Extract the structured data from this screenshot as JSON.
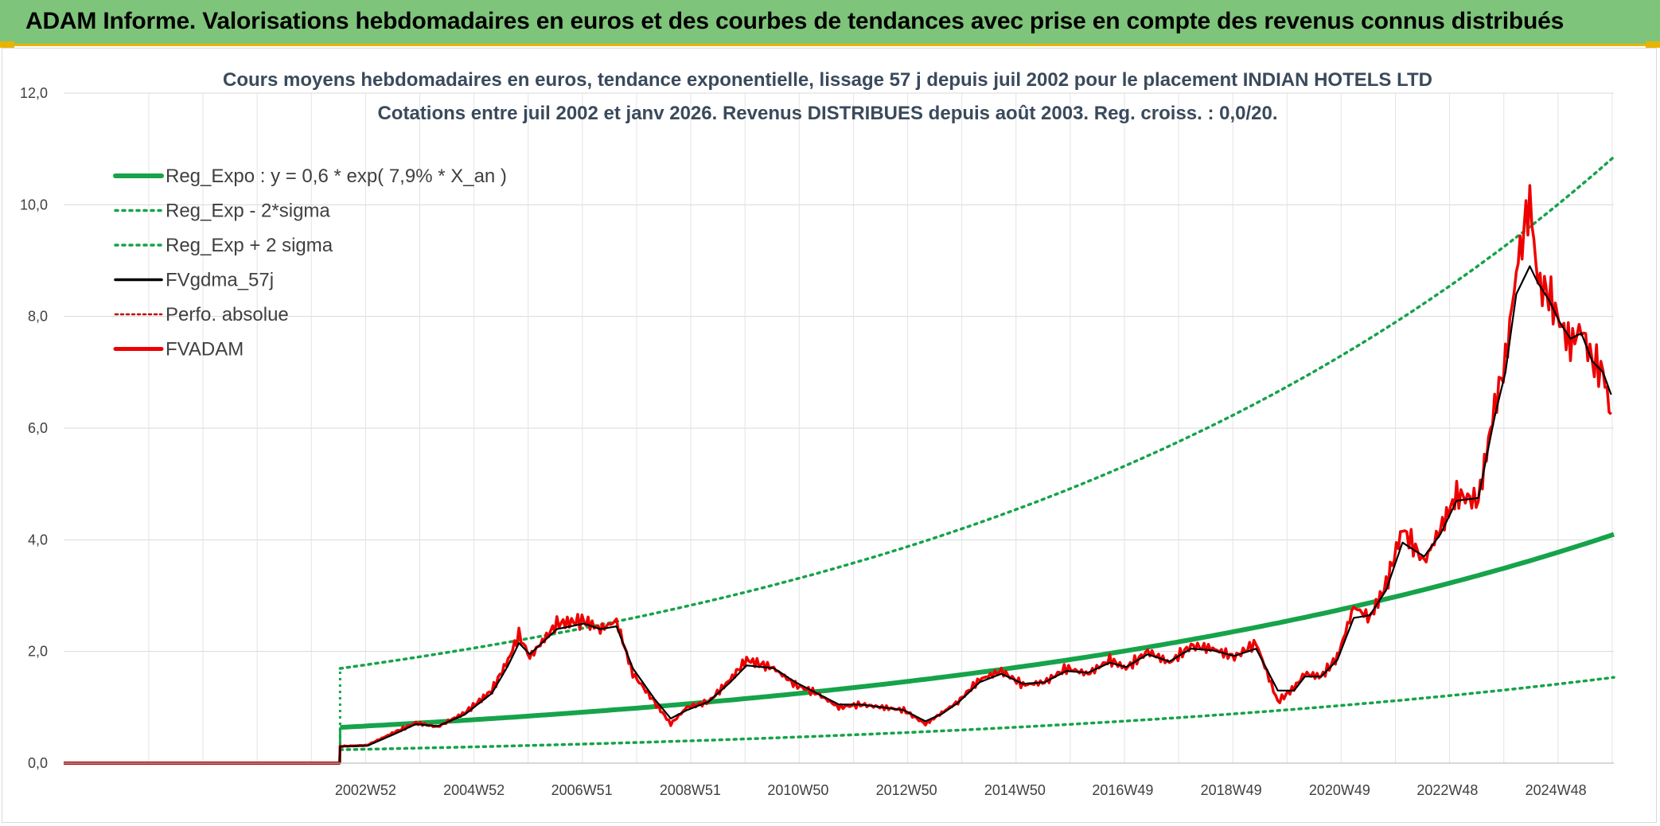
{
  "banner": {
    "title": "ADAM Informe. Valorisations hebdomadaires en euros et des courbes de tendances avec prise en compte des revenus connus distribués"
  },
  "colors": {
    "banner_bg": "#7ec47a",
    "regression": "#16a34a",
    "sigma": "#16a34a",
    "smoothed": "#000000",
    "perfo": "#c00000",
    "fvadam": "#ee0000"
  },
  "chart_data": {
    "type": "line",
    "title": [
      "Cours moyens hebdomadaires en euros, tendance exponentielle, lissage 57 j depuis juil 2002 pour le placement INDIAN HOTELS LTD",
      "Cotations entre juil 2002 et janv 2026. Revenus DISTRIBUES depuis août 2003. Reg. croiss. : 0,0/20."
    ],
    "xlabel": "",
    "ylabel": "",
    "x_range": [
      1997.4,
      2026.0
    ],
    "ylim": [
      0,
      12
    ],
    "y_ticks": [
      0,
      2,
      4,
      6,
      8,
      10,
      12
    ],
    "y_tick_labels": [
      "0,0",
      "2,0",
      "4,0",
      "6,0",
      "8,0",
      "10,0",
      "12,0"
    ],
    "x_ticks": [
      {
        "label": "2002W52",
        "x": 2002.97
      },
      {
        "label": "2004W52",
        "x": 2004.97
      },
      {
        "label": "2006W51",
        "x": 2006.96
      },
      {
        "label": "2008W51",
        "x": 2008.96
      },
      {
        "label": "2010W50",
        "x": 2010.95
      },
      {
        "label": "2012W50",
        "x": 2012.95
      },
      {
        "label": "2014W50",
        "x": 2014.95
      },
      {
        "label": "2016W49",
        "x": 2016.94
      },
      {
        "label": "2018W49",
        "x": 2018.94
      },
      {
        "label": "2020W49",
        "x": 2020.94
      },
      {
        "label": "2022W48",
        "x": 2022.93
      },
      {
        "label": "2024W48",
        "x": 2024.93
      }
    ],
    "grid": true,
    "legend_position": "top-left",
    "legend": [
      {
        "key": "reg",
        "label": "Reg_Expo : y = 0,6 * exp( 7,9% *  X_an )"
      },
      {
        "key": "reg_minus",
        "label": "Reg_Exp - 2*sigma"
      },
      {
        "key": "reg_plus",
        "label": "Reg_Exp + 2 sigma"
      },
      {
        "key": "smooth",
        "label": "FVgdma_57j"
      },
      {
        "key": "perfo",
        "label": "Perfo. absolue"
      },
      {
        "key": "fvadam",
        "label": "FVADAM"
      }
    ],
    "regression": {
      "start": 2002.5,
      "end": 2026.0,
      "base": 0.64,
      "rate": 0.079,
      "lower_factor": 0.375,
      "upper_factor": 2.65
    },
    "series": [
      {
        "name": "FVADAM",
        "x": [
          1997.4,
          2002.49,
          2002.5,
          2003.0,
          2003.5,
          2003.9,
          2004.3,
          2004.8,
          2005.3,
          2005.6,
          2005.8,
          2006.0,
          2006.5,
          2007.0,
          2007.3,
          2007.6,
          2007.9,
          2008.3,
          2008.6,
          2008.9,
          2009.3,
          2009.7,
          2010.0,
          2010.5,
          2010.9,
          2011.3,
          2011.7,
          2012.1,
          2012.5,
          2012.9,
          2013.3,
          2013.6,
          2013.9,
          2014.3,
          2014.7,
          2015.1,
          2015.5,
          2015.9,
          2016.3,
          2016.7,
          2017.0,
          2017.4,
          2017.8,
          2018.2,
          2018.6,
          2019.0,
          2019.4,
          2019.8,
          2020.1,
          2020.3,
          2020.6,
          2020.9,
          2021.2,
          2021.5,
          2021.8,
          2022.1,
          2022.5,
          2022.8,
          2023.1,
          2023.5,
          2023.8,
          2024.0,
          2024.2,
          2024.45,
          2024.6,
          2024.8,
          2025.0,
          2025.2,
          2025.4,
          2025.6,
          2025.8,
          2025.95
        ],
        "values": [
          0,
          0,
          0.3,
          0.32,
          0.55,
          0.72,
          0.65,
          0.9,
          1.3,
          1.85,
          2.3,
          1.9,
          2.5,
          2.55,
          2.4,
          2.55,
          1.6,
          1.1,
          0.7,
          1.0,
          1.1,
          1.5,
          1.85,
          1.7,
          1.4,
          1.25,
          1.0,
          1.05,
          1.0,
          0.95,
          0.7,
          0.9,
          1.1,
          1.5,
          1.65,
          1.4,
          1.45,
          1.7,
          1.6,
          1.85,
          1.7,
          2.0,
          1.8,
          2.1,
          2.05,
          1.9,
          2.15,
          1.1,
          1.35,
          1.6,
          1.55,
          1.9,
          2.8,
          2.6,
          3.2,
          4.2,
          3.6,
          4.2,
          4.8,
          4.7,
          6.4,
          7.2,
          8.8,
          10.1,
          8.6,
          8.4,
          7.9,
          7.5,
          7.8,
          7.2,
          7.0,
          6.25
        ]
      },
      {
        "name": "FVgdma_57j",
        "x": [
          1997.4,
          2002.49,
          2002.5,
          2003.0,
          2003.5,
          2003.9,
          2004.3,
          2004.8,
          2005.3,
          2005.6,
          2005.8,
          2006.0,
          2006.5,
          2007.0,
          2007.3,
          2007.6,
          2007.9,
          2008.3,
          2008.6,
          2008.9,
          2009.3,
          2009.7,
          2010.0,
          2010.5,
          2010.9,
          2011.3,
          2011.7,
          2012.1,
          2012.5,
          2012.9,
          2013.3,
          2013.6,
          2013.9,
          2014.3,
          2014.7,
          2015.1,
          2015.5,
          2015.9,
          2016.3,
          2016.7,
          2017.0,
          2017.4,
          2017.8,
          2018.2,
          2018.6,
          2019.0,
          2019.4,
          2019.8,
          2020.1,
          2020.3,
          2020.6,
          2020.9,
          2021.2,
          2021.5,
          2021.8,
          2022.1,
          2022.5,
          2022.8,
          2023.1,
          2023.5,
          2023.8,
          2024.0,
          2024.2,
          2024.45,
          2024.6,
          2024.8,
          2025.0,
          2025.2,
          2025.4,
          2025.6,
          2025.8,
          2025.95
        ],
        "values": [
          0,
          0,
          0.3,
          0.31,
          0.52,
          0.7,
          0.66,
          0.87,
          1.25,
          1.75,
          2.15,
          1.95,
          2.4,
          2.5,
          2.4,
          2.45,
          1.7,
          1.15,
          0.8,
          0.95,
          1.1,
          1.45,
          1.75,
          1.7,
          1.45,
          1.25,
          1.05,
          1.05,
          1.0,
          0.95,
          0.75,
          0.88,
          1.08,
          1.45,
          1.6,
          1.42,
          1.45,
          1.65,
          1.62,
          1.8,
          1.72,
          1.95,
          1.82,
          2.05,
          2.02,
          1.92,
          2.05,
          1.3,
          1.3,
          1.55,
          1.55,
          1.85,
          2.6,
          2.65,
          3.1,
          3.95,
          3.7,
          4.1,
          4.7,
          4.75,
          6.2,
          7.0,
          8.4,
          8.9,
          8.6,
          8.3,
          7.9,
          7.6,
          7.7,
          7.2,
          7.0,
          6.6
        ]
      }
    ]
  }
}
